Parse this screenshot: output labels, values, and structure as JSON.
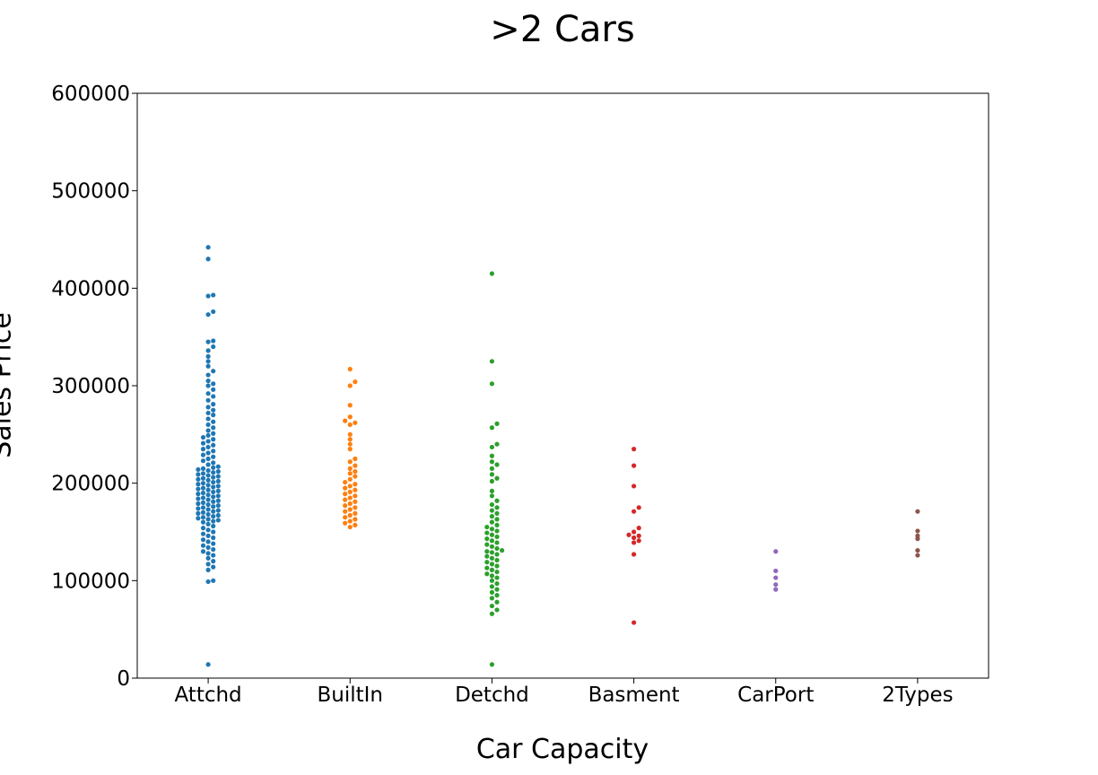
{
  "chart_data": {
    "type": "scatter",
    "subtype": "swarm",
    "title": ">2 Cars",
    "xlabel": "Car Capacity",
    "ylabel": "Sales Price",
    "ylim": [
      0,
      600000
    ],
    "yticks": [
      0,
      100000,
      200000,
      300000,
      400000,
      500000,
      600000
    ],
    "ytick_labels": [
      "0",
      "100000",
      "200000",
      "300000",
      "400000",
      "500000",
      "600000"
    ],
    "categories": [
      "Attchd",
      "BuiltIn",
      "Detchd",
      "Basment",
      "CarPort",
      "2Types"
    ],
    "grid": false,
    "series": [
      {
        "category": "Attchd",
        "color": "#1f77b4",
        "spread": 64,
        "values": [
          442000,
          430000,
          393000,
          392000,
          376000,
          373000,
          346000,
          345000,
          340000,
          336000,
          330000,
          325000,
          320000,
          315000,
          311000,
          305000,
          302000,
          300000,
          296000,
          292000,
          289000,
          285000,
          281000,
          278000,
          275000,
          272000,
          270000,
          266000,
          263000,
          260000,
          257000,
          254000,
          251000,
          249000,
          247000,
          245000,
          243000,
          241000,
          239000,
          237000,
          235000,
          233000,
          231000,
          229000,
          227000,
          225000,
          223000,
          221000,
          219000,
          217000,
          216000,
          215000,
          214000,
          213000,
          212000,
          211000,
          210000,
          209000,
          208000,
          207000,
          206000,
          205000,
          204000,
          203000,
          202000,
          201000,
          200000,
          199000,
          198000,
          197000,
          196000,
          195000,
          194000,
          193000,
          192000,
          191000,
          190000,
          189000,
          188000,
          187000,
          186000,
          185000,
          184000,
          183000,
          182000,
          181000,
          180000,
          179000,
          178000,
          177000,
          176000,
          175000,
          174000,
          173000,
          172000,
          171000,
          170000,
          169000,
          168000,
          167000,
          166000,
          165000,
          164000,
          163000,
          162000,
          161000,
          160000,
          158000,
          156000,
          154000,
          152000,
          150000,
          148000,
          146000,
          144000,
          142000,
          140000,
          138000,
          136000,
          134000,
          132000,
          130000,
          128000,
          126000,
          123000,
          120000,
          117000,
          114000,
          111000,
          100000,
          99000,
          14000
        ]
      },
      {
        "category": "BuiltIn",
        "color": "#ff7f0e",
        "spread": 16,
        "values": [
          317000,
          304000,
          300000,
          280000,
          268000,
          264000,
          262000,
          260000,
          250000,
          245000,
          240000,
          235000,
          225000,
          222000,
          218000,
          215000,
          212000,
          210000,
          207000,
          204000,
          201000,
          199000,
          197000,
          195000,
          193000,
          191000,
          189000,
          187000,
          185000,
          183000,
          181000,
          179000,
          177000,
          175000,
          173000,
          171000,
          169000,
          167000,
          165000,
          163000,
          161000,
          159000,
          157000,
          155000
        ]
      },
      {
        "category": "Detchd",
        "color": "#2ca02c",
        "spread": 64,
        "values": [
          415000,
          325000,
          302000,
          261000,
          257000,
          240000,
          237000,
          228000,
          222000,
          219000,
          215000,
          209000,
          205000,
          202000,
          192000,
          187000,
          182000,
          178000,
          175000,
          172000,
          169000,
          166000,
          163000,
          160000,
          157000,
          155000,
          153000,
          151000,
          149000,
          147000,
          145000,
          143000,
          141000,
          139000,
          137000,
          135000,
          133000,
          131000,
          130000,
          129000,
          127000,
          125000,
          123000,
          121000,
          119000,
          117000,
          115000,
          113000,
          111000,
          109000,
          107000,
          105000,
          103000,
          100000,
          97000,
          94000,
          91000,
          88000,
          85000,
          82000,
          78000,
          74000,
          70000,
          66000,
          14000
        ]
      },
      {
        "category": "Basment",
        "color": "#d62728",
        "spread": 8,
        "values": [
          235000,
          218000,
          197000,
          175000,
          171000,
          154000,
          150000,
          147000,
          146000,
          144000,
          141000,
          139000,
          127000,
          57000
        ]
      },
      {
        "category": "CarPort",
        "color": "#9467bd",
        "spread": 0,
        "values": [
          130000,
          110000,
          103000,
          96000,
          91000
        ]
      },
      {
        "category": "2Types",
        "color": "#8c564b",
        "spread": 4,
        "values": [
          171000,
          151000,
          146000,
          143000,
          131000,
          126000
        ]
      }
    ]
  }
}
